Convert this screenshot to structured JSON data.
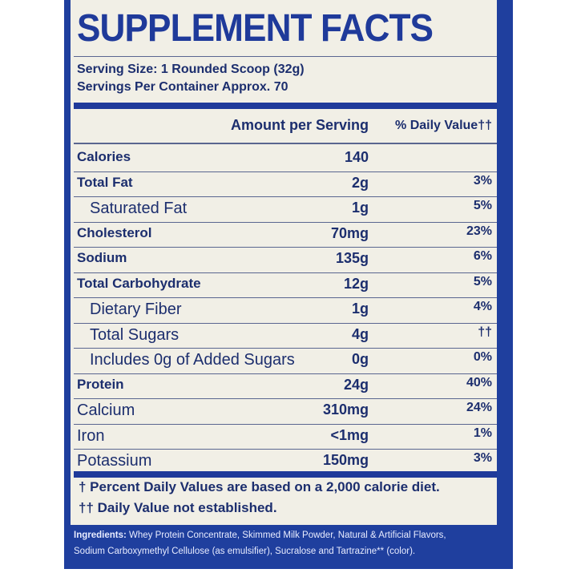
{
  "header": {
    "title": "SUPPLEMENT FACTS",
    "serving_size": "Serving Size: 1 Rounded Scoop (32g)",
    "servings_per_container": "Servings Per Container Approx. 70"
  },
  "table": {
    "columns": [
      "Amount per Serving",
      "% Daily Value††"
    ],
    "rows": [
      {
        "name": "Calories",
        "amount": "140",
        "bold": true
      },
      {
        "name": "Total Fat",
        "amount": "2g",
        "dv": "3%",
        "bold": true
      },
      {
        "name": "Saturated Fat",
        "amount": "1g",
        "dv": "5%",
        "indent": true
      },
      {
        "name": "Cholesterol",
        "amount": "70mg",
        "dv": "23%",
        "bold": true
      },
      {
        "name": "Sodium",
        "amount": "135g",
        "dv": "6%",
        "bold": true
      },
      {
        "name": "Total Carbohydrate",
        "amount": "12g",
        "dv": "5%",
        "bold": true
      },
      {
        "name": "Dietary Fiber",
        "amount": "1g",
        "dv": "4%",
        "indent": true
      },
      {
        "name": "Total Sugars",
        "amount": "4g",
        "dv": "††",
        "indent": true
      },
      {
        "name": "Includes 0g of Added Sugars",
        "amount": "0g",
        "dv": "0%",
        "indent": true
      },
      {
        "name": "Protein",
        "amount": "24g",
        "dv": "40%",
        "bold": true
      },
      {
        "name": "Calcium",
        "amount": "310mg",
        "dv": "24%"
      },
      {
        "name": "Iron",
        "amount": "<1mg",
        "dv": "1%"
      },
      {
        "name": "Potassium",
        "amount": "150mg",
        "dv": "3%"
      }
    ]
  },
  "footnotes": [
    "† Percent Daily Values are based on a 2,000 calorie diet.",
    "†† Daily Value not established."
  ],
  "ingredients": {
    "label": "Ingredients:",
    "lines": [
      " Whey Protein Concentrate, Skimmed Milk Powder, Natural & Artificial Flavors,",
      "Sodium Carboxymethyl Cellulose (as emulsifier), Sucralose and Tartrazine** (color)."
    ]
  }
}
